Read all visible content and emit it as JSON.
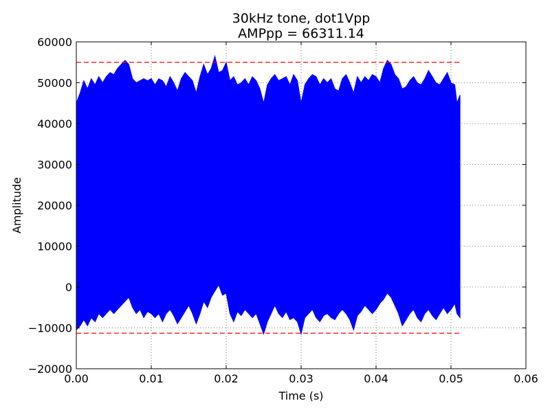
{
  "chart_data": {
    "type": "line",
    "title": "30kHz tone, dot1Vpp",
    "subtitle": "AMPpp = 66311.14",
    "xlabel": "Time (s)",
    "ylabel": "Amplitude",
    "xlim": [
      0.0,
      0.06
    ],
    "ylim": [
      -20000,
      60000
    ],
    "x_ticks": [
      "0.00",
      "0.01",
      "0.02",
      "0.03",
      "0.04",
      "0.05",
      "0.06"
    ],
    "y_ticks": [
      "−20000",
      "−10000",
      "0",
      "10000",
      "20000",
      "30000",
      "40000",
      "50000",
      "60000"
    ],
    "x_tick_values": [
      0.0,
      0.01,
      0.02,
      0.03,
      0.04,
      0.05,
      0.06
    ],
    "y_tick_values": [
      -20000,
      -10000,
      0,
      10000,
      20000,
      30000,
      40000,
      50000,
      60000
    ],
    "grid": true,
    "series": [
      {
        "color": "#0000ff",
        "style": "filled-envelope",
        "x_range": [
          0.0,
          0.0512
        ],
        "upper_envelope": [
          [
            0.0,
            45000
          ],
          [
            0.0005,
            47500
          ],
          [
            0.001,
            50500
          ],
          [
            0.0015,
            48500
          ],
          [
            0.002,
            51000
          ],
          [
            0.0025,
            49500
          ],
          [
            0.003,
            51500
          ],
          [
            0.0035,
            50000
          ],
          [
            0.004,
            51500
          ],
          [
            0.0045,
            52500
          ],
          [
            0.005,
            52000
          ],
          [
            0.0055,
            53500
          ],
          [
            0.006,
            54500
          ],
          [
            0.0065,
            55500
          ],
          [
            0.007,
            54500
          ],
          [
            0.0075,
            51000
          ],
          [
            0.008,
            50000
          ],
          [
            0.0085,
            50500
          ],
          [
            0.009,
            51000
          ],
          [
            0.0095,
            50500
          ],
          [
            0.01,
            51000
          ],
          [
            0.0105,
            49500
          ],
          [
            0.011,
            51000
          ],
          [
            0.0115,
            50500
          ],
          [
            0.012,
            49000
          ],
          [
            0.0125,
            51500
          ],
          [
            0.013,
            50000
          ],
          [
            0.0135,
            48000
          ],
          [
            0.014,
            51000
          ],
          [
            0.0145,
            52500
          ],
          [
            0.015,
            51500
          ],
          [
            0.0155,
            50500
          ],
          [
            0.016,
            47500
          ],
          [
            0.0165,
            51500
          ],
          [
            0.017,
            54500
          ],
          [
            0.0175,
            52000
          ],
          [
            0.018,
            53500
          ],
          [
            0.0185,
            56500
          ],
          [
            0.019,
            52500
          ],
          [
            0.0195,
            53000
          ],
          [
            0.02,
            55000
          ],
          [
            0.0205,
            50500
          ],
          [
            0.021,
            51500
          ],
          [
            0.0215,
            49500
          ],
          [
            0.022,
            50000
          ],
          [
            0.0225,
            51000
          ],
          [
            0.023,
            49500
          ],
          [
            0.0235,
            51500
          ],
          [
            0.024,
            50500
          ],
          [
            0.0245,
            48500
          ],
          [
            0.025,
            45000
          ],
          [
            0.0255,
            49500
          ],
          [
            0.026,
            51000
          ],
          [
            0.0265,
            52000
          ],
          [
            0.027,
            50500
          ],
          [
            0.0275,
            51000
          ],
          [
            0.028,
            51500
          ],
          [
            0.0285,
            49500
          ],
          [
            0.029,
            52000
          ],
          [
            0.0295,
            50500
          ],
          [
            0.03,
            45000
          ],
          [
            0.0305,
            49500
          ],
          [
            0.031,
            51000
          ],
          [
            0.0315,
            52000
          ],
          [
            0.032,
            51500
          ],
          [
            0.0325,
            49500
          ],
          [
            0.033,
            51000
          ],
          [
            0.0335,
            50000
          ],
          [
            0.034,
            51000
          ],
          [
            0.0345,
            48500
          ],
          [
            0.035,
            48000
          ],
          [
            0.0355,
            51000
          ],
          [
            0.036,
            52000
          ],
          [
            0.0365,
            50000
          ],
          [
            0.037,
            47500
          ],
          [
            0.0375,
            51500
          ],
          [
            0.038,
            50000
          ],
          [
            0.0385,
            51500
          ],
          [
            0.039,
            50500
          ],
          [
            0.0395,
            52000
          ],
          [
            0.04,
            51500
          ],
          [
            0.0405,
            50000
          ],
          [
            0.041,
            53500
          ],
          [
            0.0415,
            55500
          ],
          [
            0.042,
            54500
          ],
          [
            0.0425,
            52000
          ],
          [
            0.043,
            51000
          ],
          [
            0.0435,
            48500
          ],
          [
            0.044,
            49000
          ],
          [
            0.0445,
            50500
          ],
          [
            0.045,
            51500
          ],
          [
            0.0455,
            50000
          ],
          [
            0.046,
            49500
          ],
          [
            0.0465,
            51000
          ],
          [
            0.047,
            53000
          ],
          [
            0.0475,
            51500
          ],
          [
            0.048,
            50000
          ],
          [
            0.0485,
            49500
          ],
          [
            0.049,
            51000
          ],
          [
            0.0495,
            52500
          ],
          [
            0.05,
            50000
          ],
          [
            0.0505,
            49500
          ],
          [
            0.0508,
            45000
          ],
          [
            0.0512,
            47000
          ]
        ],
        "lower_envelope": [
          [
            0.0,
            -10500
          ],
          [
            0.0005,
            -9500
          ],
          [
            0.001,
            -8000
          ],
          [
            0.0015,
            -9500
          ],
          [
            0.002,
            -7500
          ],
          [
            0.0025,
            -8500
          ],
          [
            0.003,
            -6500
          ],
          [
            0.0035,
            -7500
          ],
          [
            0.004,
            -6500
          ],
          [
            0.0045,
            -5500
          ],
          [
            0.005,
            -6500
          ],
          [
            0.0055,
            -5500
          ],
          [
            0.006,
            -4500
          ],
          [
            0.0065,
            -3500
          ],
          [
            0.007,
            -2500
          ],
          [
            0.0075,
            -5000
          ],
          [
            0.008,
            -6500
          ],
          [
            0.0085,
            -5500
          ],
          [
            0.009,
            -7500
          ],
          [
            0.0095,
            -6000
          ],
          [
            0.01,
            -6500
          ],
          [
            0.0105,
            -7500
          ],
          [
            0.011,
            -6500
          ],
          [
            0.0115,
            -8500
          ],
          [
            0.012,
            -6500
          ],
          [
            0.0125,
            -5500
          ],
          [
            0.013,
            -7000
          ],
          [
            0.0135,
            -9000
          ],
          [
            0.014,
            -7500
          ],
          [
            0.0145,
            -6000
          ],
          [
            0.015,
            -4500
          ],
          [
            0.0155,
            -6500
          ],
          [
            0.016,
            -9000
          ],
          [
            0.0165,
            -6500
          ],
          [
            0.017,
            -3500
          ],
          [
            0.0175,
            -5000
          ],
          [
            0.018,
            -2500
          ],
          [
            0.0185,
            -1000
          ],
          [
            0.019,
            500
          ],
          [
            0.0195,
            -2000
          ],
          [
            0.02,
            -1500
          ],
          [
            0.0205,
            -6500
          ],
          [
            0.021,
            -8500
          ],
          [
            0.0215,
            -6000
          ],
          [
            0.022,
            -7000
          ],
          [
            0.0225,
            -5500
          ],
          [
            0.023,
            -6500
          ],
          [
            0.0235,
            -7500
          ],
          [
            0.024,
            -6500
          ],
          [
            0.0245,
            -9000
          ],
          [
            0.025,
            -11500
          ],
          [
            0.0255,
            -8500
          ],
          [
            0.026,
            -6500
          ],
          [
            0.0265,
            -4500
          ],
          [
            0.027,
            -6500
          ],
          [
            0.0275,
            -7500
          ],
          [
            0.028,
            -6000
          ],
          [
            0.0285,
            -8000
          ],
          [
            0.029,
            -7500
          ],
          [
            0.0295,
            -8500
          ],
          [
            0.03,
            -11500
          ],
          [
            0.0305,
            -7500
          ],
          [
            0.031,
            -6500
          ],
          [
            0.0315,
            -5500
          ],
          [
            0.032,
            -7500
          ],
          [
            0.0325,
            -8500
          ],
          [
            0.033,
            -7000
          ],
          [
            0.0335,
            -6500
          ],
          [
            0.034,
            -7500
          ],
          [
            0.0345,
            -8000
          ],
          [
            0.035,
            -6500
          ],
          [
            0.0355,
            -5500
          ],
          [
            0.036,
            -6500
          ],
          [
            0.0365,
            -8000
          ],
          [
            0.037,
            -10500
          ],
          [
            0.0375,
            -7000
          ],
          [
            0.038,
            -6000
          ],
          [
            0.0385,
            -4500
          ],
          [
            0.039,
            -5500
          ],
          [
            0.0395,
            -6500
          ],
          [
            0.04,
            -5500
          ],
          [
            0.0405,
            -4000
          ],
          [
            0.041,
            -3000
          ],
          [
            0.0415,
            -1500
          ],
          [
            0.042,
            -2500
          ],
          [
            0.0425,
            -4500
          ],
          [
            0.043,
            -6500
          ],
          [
            0.0435,
            -9500
          ],
          [
            0.044,
            -8000
          ],
          [
            0.0445,
            -6500
          ],
          [
            0.045,
            -5500
          ],
          [
            0.0455,
            -7500
          ],
          [
            0.046,
            -8500
          ],
          [
            0.0465,
            -6500
          ],
          [
            0.047,
            -5500
          ],
          [
            0.0475,
            -7000
          ],
          [
            0.048,
            -8000
          ],
          [
            0.0485,
            -6500
          ],
          [
            0.049,
            -5000
          ],
          [
            0.0495,
            -6500
          ],
          [
            0.05,
            -5500
          ],
          [
            0.0505,
            -4000
          ],
          [
            0.0508,
            -6500
          ],
          [
            0.0512,
            -7500
          ]
        ]
      }
    ],
    "reference_lines": [
      {
        "y": 55000,
        "color": "#ff0000",
        "style": "dashed",
        "x_range": [
          0.0,
          0.0512
        ]
      },
      {
        "y": -11300,
        "color": "#ff0000",
        "style": "dashed",
        "x_range": [
          0.0,
          0.0512
        ]
      }
    ]
  }
}
